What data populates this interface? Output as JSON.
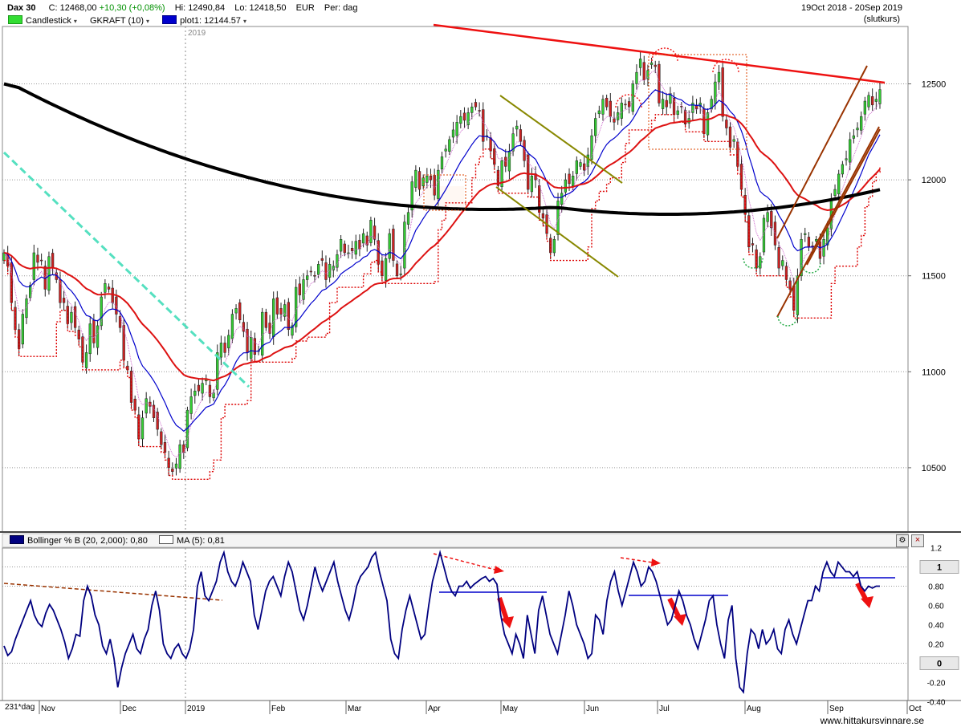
{
  "header": {
    "symbol": "Dax 30",
    "close": "C: 12468,00",
    "change": "+10,30 (+0,08%)",
    "high": "Hi: 12490,84",
    "low": "Lo: 12418,50",
    "currency": "EUR",
    "period": "Per: dag",
    "date_range": "19Oct 2018 - 20Sep 2019",
    "price_type": "(slutkurs)",
    "change_color": "#00a000"
  },
  "legend": {
    "items": [
      {
        "label": "Candlestick",
        "color": "#33dd33",
        "dropdown": "▾"
      },
      {
        "label": "GKRAFT (10)",
        "color": "",
        "dropdown": "▾"
      },
      {
        "label": "plot1: 12144.57",
        "color": "#0000cc",
        "dropdown": "▾"
      }
    ]
  },
  "year_marker": "2019",
  "indicator": {
    "name": "Bollinger % B (20, 2,000): 0,80",
    "ma": "MA (5): 0,81",
    "icons": [
      "settings-icon",
      "close-icon"
    ],
    "special_labels": [
      "1",
      "0"
    ]
  },
  "footer": {
    "bars": "231*dag",
    "watermark": "www.hittakursvinnare.se"
  },
  "chart_data": [
    {
      "type": "candlestick",
      "title": "Dax 30",
      "y_ticks": [
        10500,
        11000,
        11500,
        12000,
        12500
      ],
      "ylim": [
        10230,
        12850
      ],
      "x_months": [
        "Nov",
        "Dec",
        "2019",
        "Feb",
        "Mar",
        "Apr",
        "May",
        "Jun",
        "Jul",
        "Aug",
        "Sep",
        "Oct"
      ],
      "grid": true,
      "closes": [
        11620,
        11550,
        11360,
        11220,
        11120,
        11300,
        11380,
        11450,
        11620,
        11570,
        11580,
        11430,
        11600,
        11540,
        11480,
        11360,
        11360,
        11250,
        11310,
        11230,
        11170,
        11050,
        11100,
        11250,
        11150,
        11240,
        11390,
        11460,
        11430,
        11360,
        11300,
        11230,
        11060,
        11010,
        10840,
        10800,
        10650,
        10760,
        10860,
        10820,
        10760,
        10700,
        10620,
        10580,
        10500,
        10480,
        10520,
        10620,
        10580,
        10800,
        10870,
        10900,
        10900,
        10940,
        10960,
        10870,
        10890,
        11100,
        11150,
        11100,
        11190,
        11300,
        11330,
        11270,
        11210,
        11100,
        11180,
        11090,
        11110,
        11310,
        11230,
        11200,
        11380,
        11300,
        11300,
        11350,
        11220,
        11240,
        11440,
        11400,
        11480,
        11500,
        11520,
        11500,
        11560,
        11580,
        11480,
        11560,
        11550,
        11610,
        11690,
        11620,
        11620,
        11630,
        11680,
        11640,
        11720,
        11660,
        11790,
        11690,
        11560,
        11500,
        11590,
        11720,
        11580,
        11500,
        11510,
        11780,
        11830,
        11990,
        12050,
        11950,
        12010,
        12020,
        12000,
        11920,
        12050,
        12120,
        12160,
        12210,
        12260,
        12300,
        12330,
        12310,
        12350,
        12380,
        12380,
        12360,
        12200,
        12230,
        12150,
        12080,
        11970,
        12100,
        12070,
        12150,
        12240,
        12280,
        12200,
        12100,
        11950,
        12020,
        12000,
        11830,
        11800,
        11720,
        11620,
        11690,
        11890,
        11930,
        12000,
        11980,
        12020,
        12100,
        12090,
        12050,
        12130,
        12230,
        12320,
        12360,
        12420,
        12380,
        12330,
        12300,
        12350,
        12400,
        12390,
        12380,
        12500,
        12560,
        12630,
        12520,
        12570,
        12610,
        12590,
        12400,
        12420,
        12380,
        12450,
        12340,
        12360,
        12380,
        12290,
        12320,
        12400,
        12370,
        12400,
        12240,
        12350,
        12420,
        12510,
        12560,
        12330,
        12270,
        12170,
        12210,
        12070,
        11950,
        11820,
        11650,
        11660,
        11540,
        11600,
        11800,
        11830,
        11750,
        11660,
        11540,
        11580,
        11480,
        11430,
        11320,
        11500,
        11690,
        11720,
        11650,
        11650,
        11690,
        11590,
        11690,
        11750,
        11900,
        11950,
        12030,
        12080,
        12110,
        12210,
        12230,
        12270,
        12330,
        12410,
        12440,
        12390,
        12420,
        12470
      ]
    },
    {
      "type": "line",
      "title": "Bollinger % B (20, 2,000)",
      "y_ticks": [
        -0.4,
        -0.2,
        0,
        0.2,
        0.4,
        0.6,
        0.8,
        1,
        1.2
      ],
      "y_tick_labels": [
        "-0.40",
        "-0.20",
        "0",
        "0.20",
        "0.40",
        "0.60",
        "0.80",
        "1",
        "1.2"
      ],
      "ylim": [
        -0.4,
        1.2
      ],
      "series": [
        {
          "name": "Bollinger % B",
          "values": [
            0.18,
            0.08,
            0.12,
            0.25,
            0.35,
            0.45,
            0.55,
            0.65,
            0.5,
            0.42,
            0.38,
            0.52,
            0.61,
            0.55,
            0.45,
            0.35,
            0.22,
            0.05,
            0.15,
            0.3,
            0.28,
            0.65,
            0.8,
            0.7,
            0.5,
            0.4,
            0.18,
            0.1,
            0.25,
            0.05,
            -0.25,
            -0.05,
            0.1,
            0.2,
            0.3,
            0.15,
            0.1,
            0.25,
            0.35,
            0.6,
            0.75,
            0.55,
            0.2,
            0.1,
            0.05,
            0.15,
            0.2,
            0.1,
            0.05,
            0.15,
            0.35,
            0.8,
            0.95,
            0.7,
            0.65,
            0.75,
            0.85,
            1.05,
            1.15,
            0.95,
            0.85,
            0.8,
            0.9,
            1.05,
            0.95,
            0.85,
            0.5,
            0.35,
            0.55,
            0.75,
            0.85,
            0.9,
            0.8,
            0.7,
            0.9,
            1.05,
            0.95,
            0.75,
            0.55,
            0.45,
            0.6,
            0.8,
            1.0,
            0.85,
            0.75,
            0.85,
            0.95,
            1.05,
            0.85,
            0.7,
            0.55,
            0.45,
            0.6,
            0.8,
            0.9,
            0.95,
            1.0,
            1.1,
            1.15,
            0.95,
            0.8,
            0.65,
            0.25,
            0.1,
            0.05,
            0.35,
            0.55,
            0.7,
            0.55,
            0.4,
            0.25,
            0.3,
            0.6,
            0.85,
            1.0,
            1.15,
            1.0,
            0.85,
            0.75,
            0.7,
            0.8,
            0.8,
            0.85,
            0.78,
            0.82,
            0.85,
            0.88,
            0.9,
            0.85,
            0.88,
            0.82,
            0.5,
            0.3,
            0.2,
            0.1,
            0.3,
            0.2,
            0.05,
            0.5,
            0.3,
            0.1,
            0.55,
            0.7,
            0.5,
            0.3,
            0.2,
            0.1,
            0.3,
            0.5,
            0.75,
            0.6,
            0.4,
            0.3,
            0.2,
            0.05,
            0.1,
            0.5,
            0.45,
            0.3,
            0.65,
            0.85,
            0.95,
            0.75,
            0.6,
            0.75,
            0.9,
            1.05,
            0.95,
            0.8,
            0.85,
            1.0,
            0.95,
            0.85,
            0.7,
            0.55,
            0.4,
            0.45,
            0.6,
            0.75,
            0.65,
            0.5,
            0.4,
            0.25,
            0.15,
            0.3,
            0.45,
            0.65,
            0.7,
            0.4,
            0.2,
            0.05,
            0.45,
            0.6,
            0.05,
            -0.25,
            -0.3,
            0.1,
            0.35,
            0.3,
            0.15,
            0.35,
            0.2,
            0.25,
            0.35,
            0.15,
            0.1,
            0.35,
            0.45,
            0.3,
            0.2,
            0.35,
            0.5,
            0.65,
            0.65,
            0.8,
            0.75,
            0.95,
            1.05,
            0.95,
            0.9,
            1.05,
            1.0,
            0.95,
            0.95,
            0.9,
            0.95,
            0.8,
            0.75,
            0.8,
            0.78,
            0.8,
            0.8
          ]
        }
      ]
    }
  ]
}
